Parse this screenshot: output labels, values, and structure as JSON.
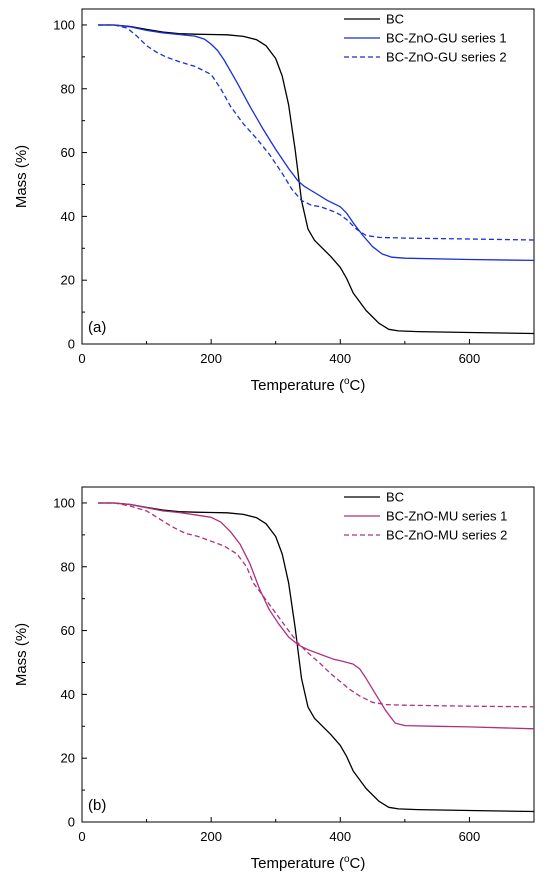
{
  "chart_data": [
    {
      "type": "line",
      "panel_label": "(a)",
      "xlabel": "Temperature (°C)",
      "xlabel_main": "Temperature (",
      "xlabel_unit_sup": "o",
      "xlabel_unit": "C)",
      "ylabel": "Mass (%)",
      "xlim": [
        0,
        700
      ],
      "ylim": [
        0,
        105
      ],
      "x_ticks": [
        0,
        200,
        400,
        600
      ],
      "y_ticks": [
        0,
        20,
        40,
        60,
        80,
        100
      ],
      "grid": false,
      "legend_position": "top-right",
      "series": [
        {
          "name": "BC",
          "color": "#000000",
          "dash": "solid",
          "points": [
            [
              25,
              100
            ],
            [
              50,
              100
            ],
            [
              75,
              99.5
            ],
            [
              100,
              98.6
            ],
            [
              125,
              97.8
            ],
            [
              150,
              97.3
            ],
            [
              175,
              97.1
            ],
            [
              200,
              97
            ],
            [
              225,
              96.9
            ],
            [
              250,
              96.4
            ],
            [
              270,
              95.4
            ],
            [
              285,
              93.5
            ],
            [
              300,
              89.5
            ],
            [
              310,
              84
            ],
            [
              320,
              75
            ],
            [
              330,
              61
            ],
            [
              340,
              45
            ],
            [
              350,
              36
            ],
            [
              360,
              32.5
            ],
            [
              370,
              30.5
            ],
            [
              385,
              27.5
            ],
            [
              400,
              24
            ],
            [
              410,
              20.5
            ],
            [
              420,
              16
            ],
            [
              440,
              10.5
            ],
            [
              460,
              6.5
            ],
            [
              475,
              4.6
            ],
            [
              490,
              4.1
            ],
            [
              520,
              3.9
            ],
            [
              600,
              3.6
            ],
            [
              700,
              3.3
            ]
          ]
        },
        {
          "name": "BC-ZnO-GU series 1",
          "color": "#1a2fd8",
          "dash": "solid",
          "points": [
            [
              25,
              100
            ],
            [
              50,
              100
            ],
            [
              75,
              99.4
            ],
            [
              100,
              98.3
            ],
            [
              125,
              97.5
            ],
            [
              150,
              97
            ],
            [
              175,
              96.5
            ],
            [
              190,
              95.5
            ],
            [
              200,
              94
            ],
            [
              210,
              92
            ],
            [
              220,
              89
            ],
            [
              240,
              82
            ],
            [
              260,
              74.5
            ],
            [
              280,
              67.5
            ],
            [
              300,
              61
            ],
            [
              320,
              55
            ],
            [
              335,
              51
            ],
            [
              345,
              49.3
            ],
            [
              360,
              47.5
            ],
            [
              380,
              45
            ],
            [
              395,
              43.5
            ],
            [
              400,
              43
            ],
            [
              410,
              41
            ],
            [
              420,
              38
            ],
            [
              435,
              34
            ],
            [
              450,
              30.5
            ],
            [
              465,
              28.2
            ],
            [
              480,
              27.2
            ],
            [
              500,
              26.9
            ],
            [
              600,
              26.5
            ],
            [
              700,
              26.2
            ]
          ]
        },
        {
          "name": "BC-ZnO-GU series 2",
          "color": "#1a2fd8",
          "dash": "dashed",
          "points": [
            [
              25,
              100
            ],
            [
              50,
              100
            ],
            [
              70,
              99
            ],
            [
              85,
              96.5
            ],
            [
              100,
              93.5
            ],
            [
              115,
              91.5
            ],
            [
              130,
              90
            ],
            [
              150,
              88.5
            ],
            [
              175,
              87
            ],
            [
              200,
              84.5
            ],
            [
              215,
              80
            ],
            [
              230,
              74.5
            ],
            [
              250,
              69
            ],
            [
              270,
              64.5
            ],
            [
              290,
              59.5
            ],
            [
              310,
              53.5
            ],
            [
              325,
              48.5
            ],
            [
              340,
              45
            ],
            [
              355,
              43.5
            ],
            [
              370,
              43
            ],
            [
              390,
              41.5
            ],
            [
              400,
              40.5
            ],
            [
              410,
              39
            ],
            [
              425,
              36
            ],
            [
              440,
              34
            ],
            [
              460,
              33.4
            ],
            [
              500,
              33.2
            ],
            [
              600,
              32.9
            ],
            [
              700,
              32.6
            ]
          ]
        }
      ]
    },
    {
      "type": "line",
      "panel_label": "(b)",
      "xlabel": "Temperature (°C)",
      "xlabel_main": "Temperature (",
      "xlabel_unit_sup": "o",
      "xlabel_unit": "C)",
      "ylabel": "Mass (%)",
      "xlim": [
        0,
        700
      ],
      "ylim": [
        0,
        105
      ],
      "x_ticks": [
        0,
        200,
        400,
        600
      ],
      "y_ticks": [
        0,
        20,
        40,
        60,
        80,
        100
      ],
      "grid": false,
      "legend_position": "top-right",
      "series": [
        {
          "name": "BC",
          "color": "#000000",
          "dash": "solid",
          "points": [
            [
              25,
              100
            ],
            [
              50,
              100
            ],
            [
              75,
              99.5
            ],
            [
              100,
              98.6
            ],
            [
              125,
              97.8
            ],
            [
              150,
              97.3
            ],
            [
              175,
              97.1
            ],
            [
              200,
              97
            ],
            [
              225,
              96.9
            ],
            [
              250,
              96.4
            ],
            [
              270,
              95.4
            ],
            [
              285,
              93.5
            ],
            [
              300,
              89.5
            ],
            [
              310,
              84
            ],
            [
              320,
              75
            ],
            [
              330,
              61
            ],
            [
              340,
              45
            ],
            [
              350,
              36
            ],
            [
              360,
              32.5
            ],
            [
              370,
              30.5
            ],
            [
              385,
              27.5
            ],
            [
              400,
              24
            ],
            [
              410,
              20.5
            ],
            [
              420,
              16
            ],
            [
              440,
              10.5
            ],
            [
              460,
              6.5
            ],
            [
              475,
              4.6
            ],
            [
              490,
              4.1
            ],
            [
              520,
              3.9
            ],
            [
              600,
              3.6
            ],
            [
              700,
              3.3
            ]
          ]
        },
        {
          "name": "BC-ZnO-MU series 1",
          "color": "#b0307a",
          "dash": "solid",
          "points": [
            [
              25,
              100
            ],
            [
              50,
              100
            ],
            [
              75,
              99.5
            ],
            [
              100,
              98.5
            ],
            [
              125,
              97.5
            ],
            [
              150,
              97
            ],
            [
              175,
              96.3
            ],
            [
              200,
              95.5
            ],
            [
              215,
              94
            ],
            [
              230,
              91
            ],
            [
              245,
              87
            ],
            [
              260,
              81
            ],
            [
              275,
              73
            ],
            [
              290,
              66.5
            ],
            [
              305,
              62
            ],
            [
              320,
              58
            ],
            [
              335,
              55.5
            ],
            [
              350,
              54
            ],
            [
              370,
              52.5
            ],
            [
              390,
              51
            ],
            [
              405,
              50.3
            ],
            [
              420,
              49.5
            ],
            [
              430,
              48
            ],
            [
              440,
              45
            ],
            [
              455,
              40
            ],
            [
              470,
              35
            ],
            [
              485,
              31
            ],
            [
              500,
              30.2
            ],
            [
              550,
              30
            ],
            [
              600,
              29.8
            ],
            [
              700,
              29.2
            ]
          ]
        },
        {
          "name": "BC-ZnO-MU series 2",
          "color": "#b0307a",
          "dash": "dashed",
          "points": [
            [
              25,
              100
            ],
            [
              50,
              100
            ],
            [
              75,
              99
            ],
            [
              100,
              97.5
            ],
            [
              120,
              95
            ],
            [
              140,
              92.5
            ],
            [
              160,
              90.5
            ],
            [
              180,
              89.5
            ],
            [
              200,
              88
            ],
            [
              220,
              86.5
            ],
            [
              240,
              84
            ],
            [
              255,
              80
            ],
            [
              265,
              75
            ],
            [
              280,
              71
            ],
            [
              300,
              65.5
            ],
            [
              320,
              60
            ],
            [
              335,
              56
            ],
            [
              350,
              53
            ],
            [
              370,
              49.5
            ],
            [
              385,
              46.5
            ],
            [
              400,
              44
            ],
            [
              415,
              41.5
            ],
            [
              430,
              39.5
            ],
            [
              450,
              37.5
            ],
            [
              470,
              36.8
            ],
            [
              500,
              36.6
            ],
            [
              600,
              36.3
            ],
            [
              700,
              36.1
            ]
          ]
        }
      ]
    }
  ]
}
